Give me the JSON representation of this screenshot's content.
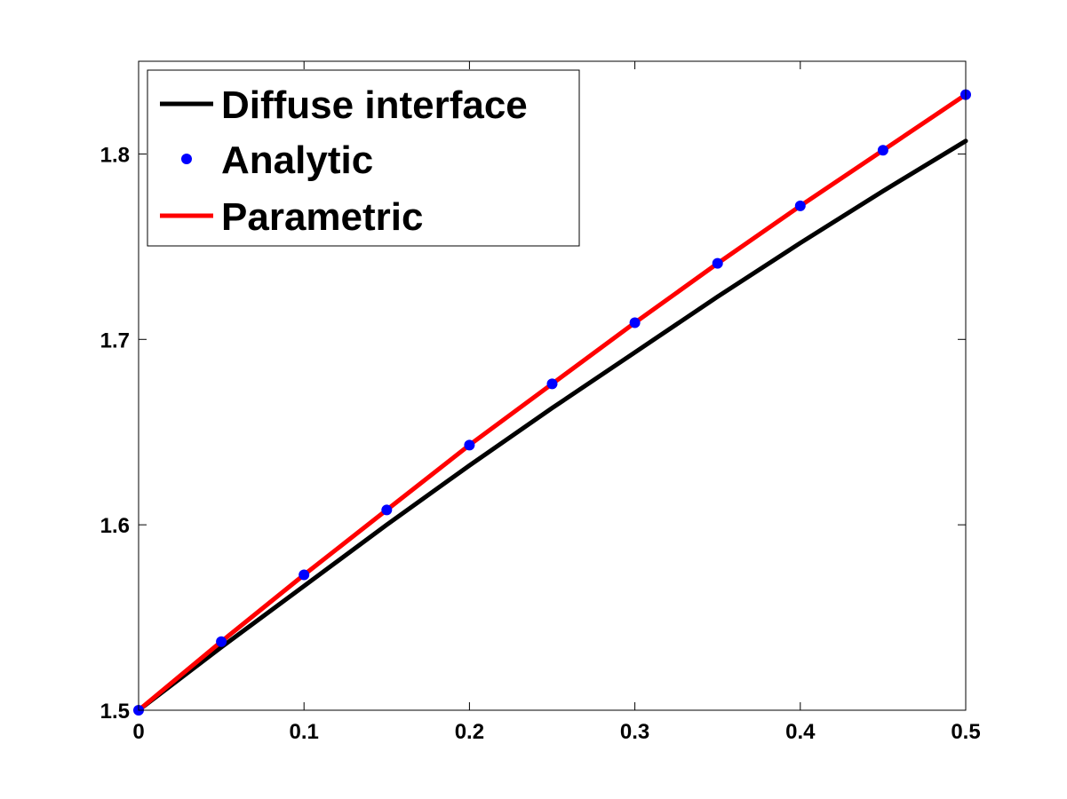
{
  "chart_data": {
    "type": "line",
    "title": "",
    "xlabel": "",
    "ylabel": "",
    "xlim": [
      0,
      0.5
    ],
    "ylim": [
      1.5,
      1.85
    ],
    "grid": false,
    "legend_position": "top-left",
    "x_ticks": [
      0,
      0.1,
      0.2,
      0.3,
      0.4,
      0.5
    ],
    "x_tick_labels": [
      "0",
      "0.1",
      "0.2",
      "0.3",
      "0.4",
      "0.5"
    ],
    "y_ticks": [
      1.5,
      1.6,
      1.7,
      1.8
    ],
    "y_tick_labels": [
      "1.5",
      "1.6",
      "1.7",
      "1.8"
    ],
    "series": [
      {
        "name": "Diffuse interface",
        "style": "line",
        "color": "#000000",
        "x": [
          0,
          0.05,
          0.1,
          0.15,
          0.2,
          0.25,
          0.3,
          0.35,
          0.4,
          0.45,
          0.5
        ],
        "y": [
          1.5,
          1.534,
          1.567,
          1.6,
          1.632,
          1.663,
          1.693,
          1.723,
          1.752,
          1.78,
          1.807
        ]
      },
      {
        "name": "Analytic",
        "style": "markers",
        "color": "#0000ff",
        "x": [
          0,
          0.05,
          0.1,
          0.15,
          0.2,
          0.25,
          0.3,
          0.35,
          0.4,
          0.45,
          0.5
        ],
        "y": [
          1.5,
          1.537,
          1.573,
          1.608,
          1.643,
          1.676,
          1.709,
          1.741,
          1.772,
          1.802,
          1.832
        ]
      },
      {
        "name": "Parametric",
        "style": "line",
        "color": "#ff0000",
        "x": [
          0,
          0.05,
          0.1,
          0.15,
          0.2,
          0.25,
          0.3,
          0.35,
          0.4,
          0.45,
          0.5
        ],
        "y": [
          1.5,
          1.537,
          1.573,
          1.608,
          1.643,
          1.676,
          1.709,
          1.741,
          1.772,
          1.802,
          1.832
        ]
      }
    ]
  }
}
